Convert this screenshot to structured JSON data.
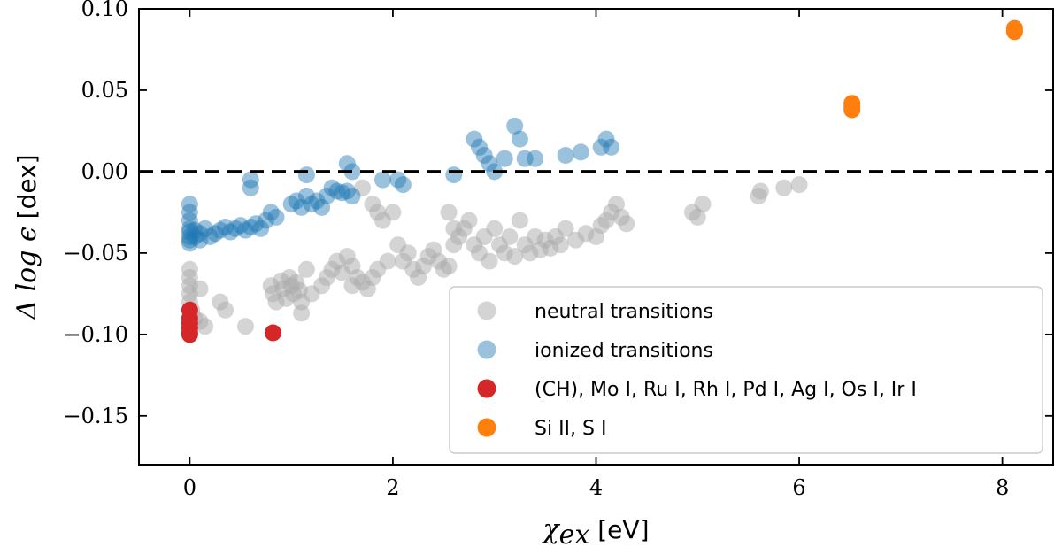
{
  "chart_data": {
    "type": "scatter",
    "title": "",
    "xlabel": {
      "math": "χ",
      "sub": "ex",
      "text": " [eV]"
    },
    "ylabel": {
      "math": "Δ log ϵ",
      "text": " [dex]"
    },
    "xlim": [
      -0.5,
      8.5
    ],
    "ylim": [
      -0.18,
      0.1
    ],
    "xticks": [
      0,
      2,
      4,
      6,
      8
    ],
    "xtick_labels": [
      "0",
      "2",
      "4",
      "6",
      "8"
    ],
    "yticks": [
      -0.15,
      -0.1,
      -0.05,
      0.0,
      0.05,
      0.1
    ],
    "ytick_labels": [
      "−0.15",
      "−0.10",
      "−0.05",
      "0.00",
      "0.05",
      "0.10"
    ],
    "reference_line": {
      "y": 0.0,
      "style": "dashed",
      "color": "#000000"
    },
    "grid": false,
    "legend": {
      "placement": "bottom-right"
    },
    "series": [
      {
        "name": "neutral transitions",
        "color": "#aaaaaa",
        "alpha": 0.5,
        "points": [
          [
            0.0,
            -0.06
          ],
          [
            0.0,
            -0.065
          ],
          [
            0.0,
            -0.07
          ],
          [
            0.0,
            -0.075
          ],
          [
            0.0,
            -0.08
          ],
          [
            0.02,
            -0.085
          ],
          [
            0.05,
            -0.09
          ],
          [
            0.1,
            -0.072
          ],
          [
            0.1,
            -0.092
          ],
          [
            0.15,
            -0.095
          ],
          [
            0.3,
            -0.08
          ],
          [
            0.35,
            -0.085
          ],
          [
            0.55,
            -0.095
          ],
          [
            0.8,
            -0.07
          ],
          [
            0.82,
            -0.075
          ],
          [
            0.85,
            -0.08
          ],
          [
            0.9,
            -0.067
          ],
          [
            0.92,
            -0.072
          ],
          [
            0.95,
            -0.078
          ],
          [
            0.98,
            -0.065
          ],
          [
            1.0,
            -0.07
          ],
          [
            1.02,
            -0.075
          ],
          [
            1.05,
            -0.068
          ],
          [
            1.08,
            -0.073
          ],
          [
            1.1,
            -0.08
          ],
          [
            1.1,
            -0.087
          ],
          [
            1.15,
            -0.06
          ],
          [
            1.2,
            -0.075
          ],
          [
            1.3,
            -0.07
          ],
          [
            1.35,
            -0.065
          ],
          [
            1.4,
            -0.06
          ],
          [
            1.45,
            -0.055
          ],
          [
            1.5,
            -0.062
          ],
          [
            1.55,
            -0.052
          ],
          [
            1.6,
            -0.058
          ],
          [
            1.6,
            -0.07
          ],
          [
            1.65,
            -0.065
          ],
          [
            1.7,
            -0.068
          ],
          [
            1.75,
            -0.072
          ],
          [
            1.8,
            -0.065
          ],
          [
            1.85,
            -0.06
          ],
          [
            1.7,
            -0.01
          ],
          [
            1.8,
            -0.02
          ],
          [
            1.85,
            -0.025
          ],
          [
            1.9,
            -0.03
          ],
          [
            1.95,
            -0.055
          ],
          [
            2.0,
            -0.025
          ],
          [
            2.05,
            -0.045
          ],
          [
            2.1,
            -0.055
          ],
          [
            2.15,
            -0.05
          ],
          [
            2.2,
            -0.06
          ],
          [
            2.25,
            -0.065
          ],
          [
            2.3,
            -0.058
          ],
          [
            2.35,
            -0.052
          ],
          [
            2.4,
            -0.048
          ],
          [
            2.45,
            -0.055
          ],
          [
            2.5,
            -0.06
          ],
          [
            2.55,
            -0.058
          ],
          [
            2.6,
            -0.045
          ],
          [
            2.65,
            -0.04
          ],
          [
            2.7,
            -0.035
          ],
          [
            2.75,
            -0.03
          ],
          [
            2.55,
            -0.025
          ],
          [
            2.6,
            -0.035
          ],
          [
            2.8,
            -0.045
          ],
          [
            2.85,
            -0.05
          ],
          [
            2.9,
            -0.04
          ],
          [
            2.95,
            -0.055
          ],
          [
            3.0,
            -0.035
          ],
          [
            3.05,
            -0.045
          ],
          [
            3.1,
            -0.05
          ],
          [
            3.15,
            -0.04
          ],
          [
            3.2,
            -0.052
          ],
          [
            3.25,
            -0.03
          ],
          [
            3.3,
            -0.045
          ],
          [
            3.35,
            -0.05
          ],
          [
            3.4,
            -0.04
          ],
          [
            3.45,
            -0.048
          ],
          [
            3.5,
            -0.042
          ],
          [
            3.55,
            -0.047
          ],
          [
            3.6,
            -0.04
          ],
          [
            3.65,
            -0.045
          ],
          [
            3.7,
            -0.035
          ],
          [
            3.8,
            -0.042
          ],
          [
            3.9,
            -0.038
          ],
          [
            4.0,
            -0.04
          ],
          [
            4.05,
            -0.033
          ],
          [
            4.1,
            -0.03
          ],
          [
            4.15,
            -0.025
          ],
          [
            4.2,
            -0.02
          ],
          [
            4.25,
            -0.028
          ],
          [
            4.3,
            -0.032
          ],
          [
            4.95,
            -0.025
          ],
          [
            5.0,
            -0.028
          ],
          [
            5.05,
            -0.02
          ],
          [
            5.6,
            -0.015
          ],
          [
            5.62,
            -0.012
          ],
          [
            5.85,
            -0.01
          ],
          [
            6.0,
            -0.008
          ]
        ]
      },
      {
        "name": "ionized transitions",
        "color": "#1f77b4",
        "alpha": 0.45,
        "points": [
          [
            0.0,
            -0.02
          ],
          [
            0.0,
            -0.025
          ],
          [
            0.0,
            -0.03
          ],
          [
            0.0,
            -0.035
          ],
          [
            0.0,
            -0.037
          ],
          [
            0.0,
            -0.04
          ],
          [
            0.0,
            -0.042
          ],
          [
            0.0,
            -0.044
          ],
          [
            0.05,
            -0.036
          ],
          [
            0.05,
            -0.04
          ],
          [
            0.1,
            -0.038
          ],
          [
            0.1,
            -0.042
          ],
          [
            0.15,
            -0.035
          ],
          [
            0.2,
            -0.04
          ],
          [
            0.25,
            -0.038
          ],
          [
            0.3,
            -0.036
          ],
          [
            0.35,
            -0.034
          ],
          [
            0.4,
            -0.037
          ],
          [
            0.45,
            -0.035
          ],
          [
            0.5,
            -0.033
          ],
          [
            0.55,
            -0.036
          ],
          [
            0.6,
            -0.034
          ],
          [
            0.65,
            -0.032
          ],
          [
            0.7,
            -0.035
          ],
          [
            0.75,
            -0.03
          ],
          [
            0.8,
            -0.025
          ],
          [
            0.85,
            -0.028
          ],
          [
            0.6,
            -0.005
          ],
          [
            0.6,
            -0.01
          ],
          [
            1.0,
            -0.02
          ],
          [
            1.05,
            -0.018
          ],
          [
            1.1,
            -0.022
          ],
          [
            1.15,
            -0.015
          ],
          [
            1.2,
            -0.02
          ],
          [
            1.25,
            -0.018
          ],
          [
            1.3,
            -0.022
          ],
          [
            1.35,
            -0.015
          ],
          [
            1.4,
            -0.01
          ],
          [
            1.45,
            -0.012
          ],
          [
            1.5,
            -0.013
          ],
          [
            1.55,
            -0.012
          ],
          [
            1.6,
            -0.015
          ],
          [
            1.15,
            -0.002
          ],
          [
            1.55,
            0.005
          ],
          [
            1.6,
            0.0
          ],
          [
            1.9,
            -0.005
          ],
          [
            2.05,
            -0.005
          ],
          [
            2.1,
            -0.008
          ],
          [
            2.6,
            -0.002
          ],
          [
            2.8,
            0.02
          ],
          [
            2.85,
            0.015
          ],
          [
            2.9,
            0.01
          ],
          [
            2.95,
            0.005
          ],
          [
            3.0,
            0.0
          ],
          [
            3.1,
            0.008
          ],
          [
            3.2,
            0.028
          ],
          [
            3.25,
            0.02
          ],
          [
            3.3,
            0.008
          ],
          [
            3.4,
            0.008
          ],
          [
            3.7,
            0.01
          ],
          [
            3.85,
            0.012
          ],
          [
            4.05,
            0.015
          ],
          [
            4.1,
            0.02
          ],
          [
            4.15,
            0.015
          ]
        ]
      },
      {
        "name": "(CH), Mo I, Ru I, Rh I, Pd I, Ag I, Os I, Ir I",
        "color": "#d62728",
        "alpha": 1.0,
        "points": [
          [
            0.0,
            -0.085
          ],
          [
            0.0,
            -0.09
          ],
          [
            0.0,
            -0.093
          ],
          [
            0.0,
            -0.096
          ],
          [
            0.0,
            -0.099
          ],
          [
            0.0,
            -0.1
          ],
          [
            0.82,
            -0.099
          ]
        ]
      },
      {
        "name": "Si II, S I",
        "color": "#ff7f0e",
        "alpha": 1.0,
        "points": [
          [
            6.52,
            0.038
          ],
          [
            6.52,
            0.04
          ],
          [
            6.52,
            0.042
          ],
          [
            8.12,
            0.086
          ],
          [
            8.12,
            0.088
          ]
        ]
      }
    ]
  }
}
